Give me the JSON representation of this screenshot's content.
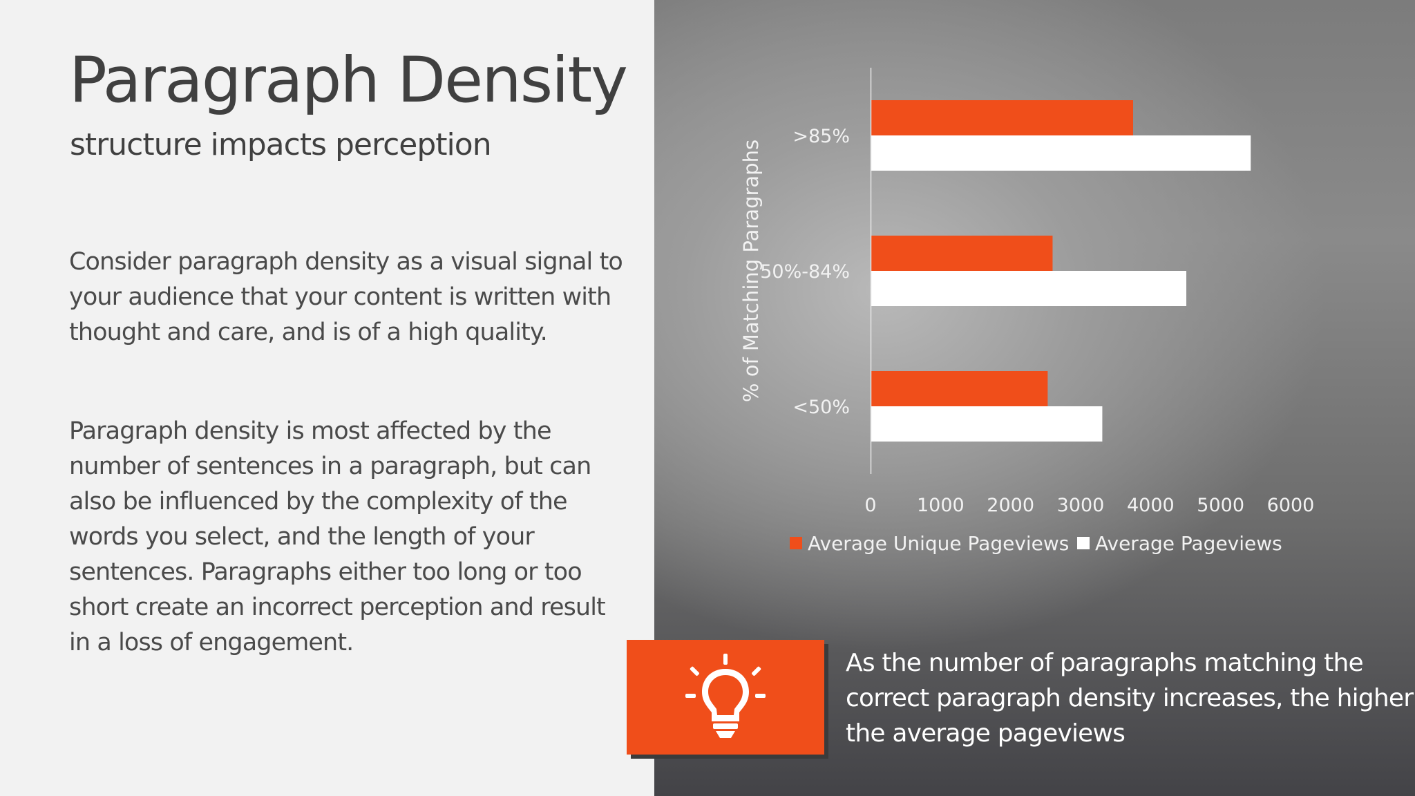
{
  "slide": {
    "title": "Paragraph Density",
    "subtitle": "structure impacts perception",
    "paragraph1_lines": [
      "Consider paragraph density as a visual signal to",
      "your audience that your content is written with",
      "thought and care, and is of a high quality."
    ],
    "paragraph2_lines": [
      "Paragraph density is most affected by the",
      "number of sentences in a paragraph, but can",
      "also be influenced by the complexity of the",
      "words you select, and the length of your",
      "sentences.  Paragraphs either too long or too",
      "short create an incorrect perception and result",
      "in a loss of engagement."
    ],
    "callout": {
      "icon": "lightbulb-icon",
      "lines": [
        "As the number of paragraphs matching the",
        "correct paragraph density increases, the higher",
        "the average pageviews"
      ]
    }
  },
  "colors": {
    "accent": "#f04e1a",
    "text_dark": "#404040",
    "bar_white": "#ffffff"
  },
  "chart_data": {
    "type": "bar",
    "orientation": "horizontal",
    "categories": [
      ">85%",
      "50%-84%",
      "<50%"
    ],
    "series": [
      {
        "name": "Average Unique Pageviews",
        "color": "#f04e1a",
        "values": [
          3750,
          2600,
          2530
        ]
      },
      {
        "name": "Average Pageviews",
        "color": "#ffffff",
        "values": [
          5430,
          4510,
          3310
        ]
      }
    ],
    "xticks": [
      "0",
      "1000",
      "2000",
      "3000",
      "4000",
      "5000",
      "6000"
    ],
    "xlim": [
      0,
      6000
    ],
    "ylabel": "% of Matching Paragraphs",
    "xlabel": "",
    "title": "",
    "legend_position": "bottom",
    "grid": false
  }
}
